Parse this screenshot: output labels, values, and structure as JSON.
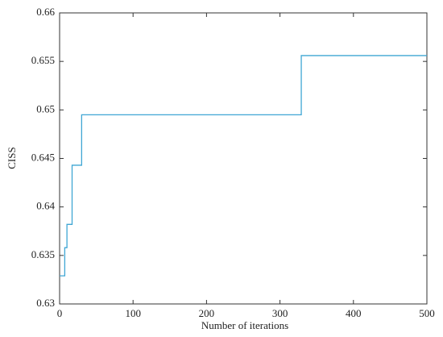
{
  "chart_data": {
    "type": "line",
    "step": "post",
    "xlabel": "Number of iterations",
    "ylabel": "CISS",
    "x": [
      0,
      7,
      10,
      17,
      30,
      329,
      500
    ],
    "series": [
      {
        "color": "#3fa6d4",
        "values": [
          0.6329,
          0.6358,
          0.6382,
          0.6443,
          0.6495,
          0.6556,
          0.6556
        ]
      }
    ],
    "xlim": [
      0,
      500
    ],
    "xticks": [
      0,
      100,
      200,
      300,
      400,
      500
    ],
    "ylim": [
      0.63,
      0.66
    ],
    "yticks": [
      0.63,
      0.635,
      0.64,
      0.645,
      0.65,
      0.655,
      0.66
    ],
    "grid": false
  }
}
